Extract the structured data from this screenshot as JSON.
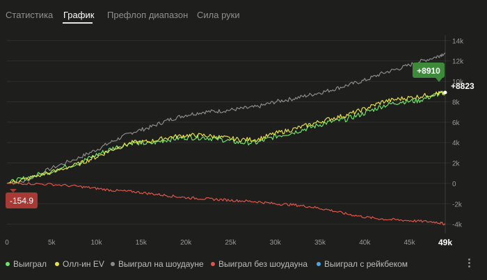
{
  "tabs": [
    {
      "label": "Статистика"
    },
    {
      "label": "График"
    },
    {
      "label": "Префлоп диапазон"
    },
    {
      "label": "Сила руки"
    }
  ],
  "active_tab": 1,
  "chart_data": {
    "type": "line",
    "xlim": [
      0,
      49000
    ],
    "ylim": [
      -4500,
      14500
    ],
    "x_ticks": [
      "0",
      "5k",
      "10k",
      "15k",
      "20k",
      "25k",
      "30k",
      "35k",
      "40k",
      "45k"
    ],
    "x_tick_values": [
      0,
      5000,
      10000,
      15000,
      20000,
      25000,
      30000,
      35000,
      40000,
      45000
    ],
    "x_end_label": "49k",
    "y_ticks": [
      "14k",
      "12k",
      "10k",
      "8k",
      "6k",
      "4k",
      "2k",
      "0",
      "-2k",
      "-4k"
    ],
    "y_tick_values": [
      14000,
      12000,
      10000,
      8000,
      6000,
      4000,
      2000,
      0,
      -2000,
      -4000
    ],
    "grid": true,
    "series": [
      {
        "name": "Выиграл на шоудауне",
        "color": "#8b8b8b",
        "x": [
          0,
          2000,
          5000,
          8000,
          10000,
          12000,
          14000,
          16000,
          18000,
          20000,
          22000,
          24000,
          26000,
          28000,
          30000,
          32000,
          34000,
          36000,
          38000,
          40000,
          42000,
          44000,
          46000,
          48000,
          49000
        ],
        "y": [
          0,
          200,
          1500,
          2500,
          3300,
          4200,
          5000,
          5500,
          6200,
          6700,
          7000,
          7100,
          7300,
          7500,
          8000,
          8300,
          8700,
          9100,
          9600,
          10100,
          10800,
          11300,
          11900,
          12400,
          12800
        ]
      },
      {
        "name": "Выиграл",
        "color": "#6fe26a",
        "x": [
          0,
          2000,
          5000,
          8000,
          10000,
          12000,
          14000,
          16000,
          18000,
          20000,
          22000,
          24000,
          26000,
          28000,
          30000,
          32000,
          34000,
          36000,
          38000,
          40000,
          42000,
          44000,
          46000,
          48000,
          49000
        ],
        "y": [
          0,
          500,
          1200,
          2000,
          2800,
          3500,
          4000,
          3900,
          4300,
          4500,
          4500,
          4300,
          4000,
          4000,
          4600,
          5000,
          5500,
          6000,
          6300,
          6900,
          7600,
          8000,
          8100,
          8700,
          8910
        ]
      },
      {
        "name": "Олл-ин EV",
        "color": "#e6e04a",
        "x": [
          0,
          2000,
          5000,
          8000,
          10000,
          12000,
          14000,
          16000,
          18000,
          20000,
          22000,
          24000,
          26000,
          28000,
          30000,
          32000,
          34000,
          36000,
          38000,
          40000,
          42000,
          44000,
          46000,
          48000,
          49000
        ],
        "y": [
          0,
          400,
          1100,
          1900,
          2600,
          3400,
          4000,
          4100,
          4500,
          4700,
          4700,
          4500,
          4300,
          4300,
          4900,
          5300,
          5800,
          6300,
          6700,
          7300,
          8000,
          8300,
          8500,
          8800,
          8823
        ]
      },
      {
        "name": "Выиграл без шоудауна",
        "color": "#e0544a",
        "x": [
          0,
          2000,
          5000,
          8000,
          10000,
          12000,
          14000,
          16000,
          18000,
          20000,
          22000,
          24000,
          26000,
          28000,
          30000,
          32000,
          34000,
          36000,
          38000,
          40000,
          42000,
          44000,
          46000,
          48000,
          49000
        ],
        "y": [
          0,
          0,
          -100,
          -300,
          -500,
          -700,
          -800,
          -1000,
          -1200,
          -1400,
          -1500,
          -1600,
          -1700,
          -1800,
          -2000,
          -2100,
          -2300,
          -2600,
          -3000,
          -3300,
          -3500,
          -3600,
          -3700,
          -3800,
          -4000
        ]
      },
      {
        "name": "Выиграл с рейкбеком",
        "color": "#4aa8e6",
        "x": [],
        "y": []
      }
    ],
    "annotations": [
      {
        "label": "+8910",
        "color": "#3d8a3a"
      },
      {
        "label": "+8823"
      },
      {
        "label": "-154.9",
        "color": "#a73a34"
      }
    ]
  }
}
